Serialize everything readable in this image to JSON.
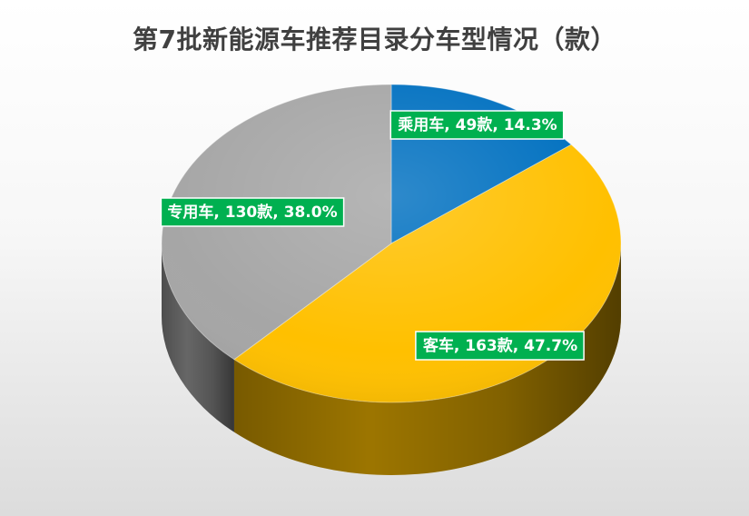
{
  "chart_data": {
    "type": "pie",
    "title": "第7批新能源车推荐目录分车型情况（款）",
    "categories": [
      "乘用车",
      "客车",
      "专用车"
    ],
    "values": [
      49,
      163,
      130
    ],
    "percentages": [
      14.3,
      47.7,
      38.0
    ],
    "labels": [
      "乘用车, 49款, 14.3%",
      "客车, 163款, 47.7%",
      "专用车, 130款, 38.0%"
    ],
    "colors": [
      "#0070C0",
      "#FFC000",
      "#A6A6A6"
    ],
    "label_background": "#00B050",
    "legend": "none"
  }
}
